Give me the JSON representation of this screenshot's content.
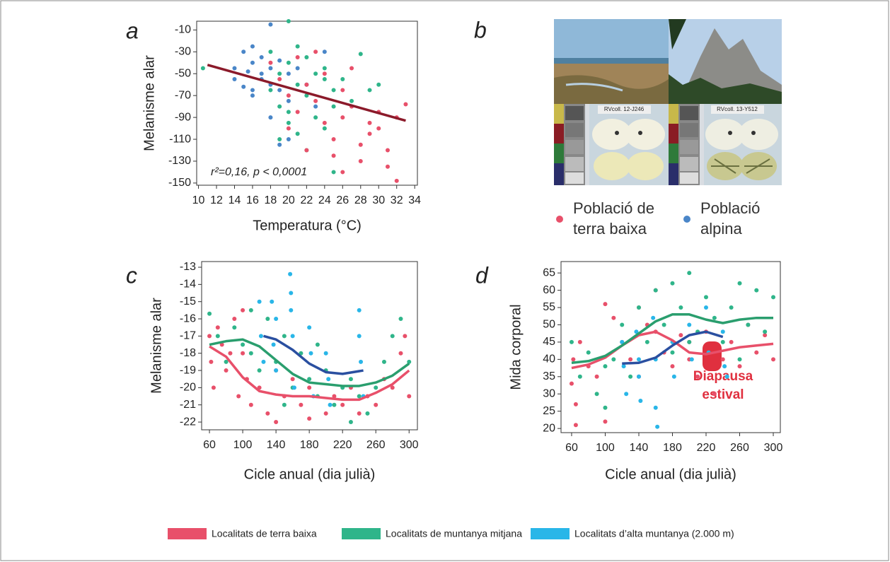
{
  "panel_b": {
    "label": "b",
    "card_labels": [
      "RVcoll. 12-J246",
      "RVcoll. 13-Y512"
    ],
    "legend": [
      {
        "color": "#e8506a",
        "lines": [
          "Població de",
          "terra baixa"
        ]
      },
      {
        "color": "#4a86c8",
        "lines": [
          "Població",
          "alpina"
        ]
      }
    ]
  },
  "chart_data": [
    {
      "type": "scatter",
      "title": "a",
      "ylabel": "Melanisme alar",
      "xlabel": "Temperatura (°C)",
      "annotation": "r²=0,16, p < 0,0001",
      "xlim": [
        9.8,
        34.3
      ],
      "ylim": [
        -152,
        -2
      ],
      "xticks": [
        10,
        12,
        14,
        16,
        18,
        20,
        22,
        24,
        26,
        28,
        30,
        32,
        34
      ],
      "yticks": [
        -10,
        -30,
        -50,
        -70,
        -90,
        -110,
        -130,
        -150
      ],
      "fit": {
        "color": "#8b1a2a",
        "x": [
          11,
          33
        ],
        "values": [
          -42,
          -93
        ]
      },
      "series": [
        {
          "color": "#4a86c8",
          "x": [
            14,
            14,
            15,
            15,
            15.5,
            16,
            16,
            16,
            17,
            17,
            18,
            18,
            18,
            19,
            19,
            20,
            20,
            21,
            22,
            23,
            24,
            16,
            17,
            19,
            18,
            20
          ],
          "values": [
            -45,
            -55,
            -30,
            -62,
            -48,
            -25,
            -70,
            -40,
            -55,
            -35,
            -5,
            -45,
            -60,
            -38,
            -65,
            -50,
            -75,
            -45,
            -60,
            -80,
            -30,
            -65,
            -50,
            -115,
            -90,
            -110
          ]
        },
        {
          "color": "#2fb58a",
          "x": [
            10.5,
            18,
            19,
            19,
            20,
            20,
            20,
            21,
            21,
            22,
            22,
            23,
            23,
            24,
            24,
            25,
            25,
            26,
            27,
            28,
            29,
            30,
            18,
            21,
            20,
            19,
            22,
            24,
            25
          ],
          "values": [
            -45,
            -30,
            -50,
            -80,
            -2,
            -40,
            -95,
            -25,
            -60,
            -35,
            -70,
            -50,
            -90,
            -45,
            -100,
            -65,
            -140,
            -55,
            -75,
            -32,
            -65,
            -60,
            -65,
            -105,
            -85,
            -110,
            -120,
            -55,
            -80
          ]
        },
        {
          "color": "#e8506a",
          "x": [
            18,
            19,
            20,
            20,
            21,
            22,
            22,
            23,
            24,
            25,
            25,
            26,
            26,
            27,
            28,
            28,
            29,
            30,
            30,
            31,
            31,
            32,
            32,
            33,
            21,
            23,
            24,
            26,
            27,
            29
          ],
          "values": [
            -40,
            -55,
            -70,
            -100,
            -85,
            -60,
            -120,
            -75,
            -95,
            -110,
            -125,
            -65,
            -90,
            -80,
            -115,
            -130,
            -95,
            -100,
            -85,
            -120,
            -135,
            -90,
            -148,
            -78,
            -35,
            -30,
            -50,
            -140,
            -45,
            -105
          ]
        }
      ]
    },
    {
      "type": "scatter",
      "title": "c",
      "ylabel": "Melanisme alar",
      "xlabel": "Cicle anual (dia julià)",
      "xlim": [
        50.6,
        310
      ],
      "ylim": [
        -22.45,
        -12.67
      ],
      "xticks": [
        60,
        100,
        140,
        180,
        220,
        260,
        300
      ],
      "yticks": [
        -13,
        -14,
        -15,
        -16,
        -17,
        -18,
        -19,
        -20,
        -21,
        -22
      ],
      "series": [
        {
          "name": "Localitats de terra baixa",
          "color": "#e8506a",
          "trend_color": "#e8506a",
          "x": [
            60,
            62,
            65,
            70,
            75,
            80,
            85,
            90,
            95,
            100,
            105,
            110,
            120,
            130,
            140,
            150,
            160,
            170,
            180,
            200,
            210,
            220,
            230,
            240,
            250,
            260,
            270,
            280,
            290,
            295,
            300,
            100,
            140,
            180
          ],
          "values": [
            -17,
            -18.5,
            -20,
            -16.5,
            -17.5,
            -19,
            -18,
            -16,
            -20.5,
            -15.5,
            -19.5,
            -21,
            -20,
            -21.5,
            -22,
            -20.5,
            -19.5,
            -21,
            -20,
            -21.5,
            -20.5,
            -21,
            -20,
            -21.5,
            -20.5,
            -21,
            -19.5,
            -20,
            -18,
            -17,
            -20.5,
            -18,
            -19,
            -21.8
          ],
          "trend_x": [
            60,
            80,
            100,
            120,
            140,
            160,
            180,
            200,
            220,
            240,
            260,
            280,
            300
          ],
          "trend_values": [
            -17.6,
            -18.2,
            -19.4,
            -20.2,
            -20.4,
            -20.5,
            -20.5,
            -20.6,
            -20.7,
            -20.7,
            -20.3,
            -19.8,
            -19.0
          ]
        },
        {
          "name": "Localitats de muntanya mitjana",
          "color": "#2fb58a",
          "trend_color": "#2a9e6e",
          "x": [
            60,
            70,
            80,
            90,
            100,
            110,
            120,
            130,
            140,
            150,
            160,
            170,
            180,
            190,
            200,
            210,
            220,
            230,
            240,
            250,
            260,
            270,
            280,
            290,
            300,
            110,
            150,
            190,
            230
          ],
          "values": [
            -15.7,
            -17,
            -18.5,
            -16.5,
            -17.5,
            -15.5,
            -19,
            -16,
            -18.5,
            -17,
            -20,
            -18,
            -19.5,
            -20.5,
            -19,
            -21,
            -20,
            -19.5,
            -20.5,
            -21.5,
            -20,
            -18.5,
            -17,
            -16,
            -18.5,
            -18,
            -21,
            -17.5,
            -22
          ],
          "trend_x": [
            60,
            80,
            100,
            120,
            140,
            160,
            180,
            200,
            220,
            240,
            260,
            280,
            300
          ],
          "trend_values": [
            -17.5,
            -17.3,
            -17.2,
            -17.6,
            -18.4,
            -19.2,
            -19.7,
            -19.8,
            -19.9,
            -19.9,
            -19.7,
            -19.3,
            -18.6
          ]
        },
        {
          "name": "Localitats d’alta muntanya (2.000 m)",
          "color": "#29b6e8",
          "trend_color": "#2a4fa0",
          "x": [
            120,
            122,
            125,
            135,
            137,
            140,
            157,
            158,
            160,
            162,
            180,
            182,
            185,
            200,
            203,
            205,
            240,
            242,
            245,
            158,
            140,
            240
          ],
          "values": [
            -15,
            -17,
            -18.5,
            -15,
            -17.5,
            -19,
            -13.4,
            -15.5,
            -17,
            -20,
            -16.5,
            -18,
            -20.5,
            -18,
            -19.5,
            -21,
            -15.5,
            -18.5,
            -20.5,
            -14.5,
            -16,
            -17
          ],
          "trend_x": [
            125,
            140,
            160,
            180,
            200,
            220,
            245
          ],
          "trend_values": [
            -17,
            -17.2,
            -17.8,
            -18.6,
            -19.1,
            -19.2,
            -19
          ]
        }
      ]
    },
    {
      "type": "scatter",
      "title": "d",
      "ylabel": "Mida corporal",
      "xlabel": "Cicle anual (dia julià)",
      "annotation_lines": [
        "Diapausa",
        "estival"
      ],
      "annotation_color": "#e0303f",
      "xlim": [
        47.4,
        308.4
      ],
      "ylim": [
        18.8,
        68.3
      ],
      "xticks": [
        60,
        100,
        140,
        180,
        220,
        260,
        300
      ],
      "yticks": [
        20,
        25,
        30,
        35,
        40,
        45,
        50,
        55,
        60,
        65
      ],
      "series": [
        {
          "color": "#e8506a",
          "trend_color": "#e8506a",
          "x": [
            60,
            62,
            65,
            70,
            80,
            90,
            100,
            110,
            120,
            130,
            140,
            150,
            160,
            170,
            180,
            190,
            200,
            210,
            220,
            230,
            240,
            250,
            260,
            270,
            280,
            290,
            300,
            100,
            140,
            160,
            200,
            65
          ],
          "values": [
            33,
            40,
            27,
            45,
            38,
            35,
            22,
            52,
            45,
            40,
            55,
            50,
            60,
            42,
            38,
            47,
            45,
            35,
            48,
            30,
            40,
            45,
            38,
            50,
            42,
            47,
            40,
            56,
            35,
            48,
            40,
            21
          ],
          "trend_x": [
            60,
            80,
            100,
            120,
            140,
            160,
            180,
            200,
            220,
            240,
            260,
            280,
            300
          ],
          "trend_values": [
            37.5,
            38.5,
            40.5,
            44,
            47,
            48,
            45.5,
            42,
            41.5,
            42.5,
            43.5,
            44,
            44.5
          ]
        },
        {
          "color": "#2fb58a",
          "trend_color": "#2a9e6e",
          "x": [
            60,
            70,
            80,
            90,
            100,
            110,
            120,
            130,
            140,
            150,
            160,
            170,
            180,
            190,
            200,
            210,
            220,
            230,
            240,
            250,
            260,
            270,
            280,
            290,
            300,
            200,
            180,
            260,
            100
          ],
          "values": [
            45,
            35,
            42,
            30,
            26,
            40,
            50,
            35,
            55,
            45,
            60,
            50,
            62,
            55,
            65,
            48,
            58,
            52,
            45,
            55,
            62,
            50,
            60,
            48,
            58,
            45,
            42,
            40,
            38
          ],
          "trend_x": [
            60,
            80,
            100,
            120,
            140,
            160,
            180,
            200,
            220,
            240,
            260,
            280,
            300
          ],
          "trend_values": [
            39,
            39.5,
            41,
            44,
            47.5,
            51,
            53,
            53,
            51.5,
            50.5,
            51.5,
            52,
            52
          ]
        },
        {
          "color": "#29b6e8",
          "trend_color": "#2a4fa0",
          "x": [
            120,
            122,
            125,
            137,
            140,
            142,
            157,
            160,
            162,
            180,
            182,
            200,
            203,
            220,
            223,
            240,
            242,
            245,
            160,
            140
          ],
          "values": [
            45,
            38,
            30,
            48,
            35,
            28,
            52,
            40,
            20.5,
            45,
            35,
            50,
            40,
            55,
            42,
            48,
            38,
            35,
            26,
            40
          ],
          "trend_x": [
            120,
            140,
            160,
            180,
            200,
            220,
            240
          ],
          "trend_values": [
            38.8,
            39,
            40.5,
            44,
            47,
            48,
            46.5
          ]
        }
      ]
    }
  ]
}
